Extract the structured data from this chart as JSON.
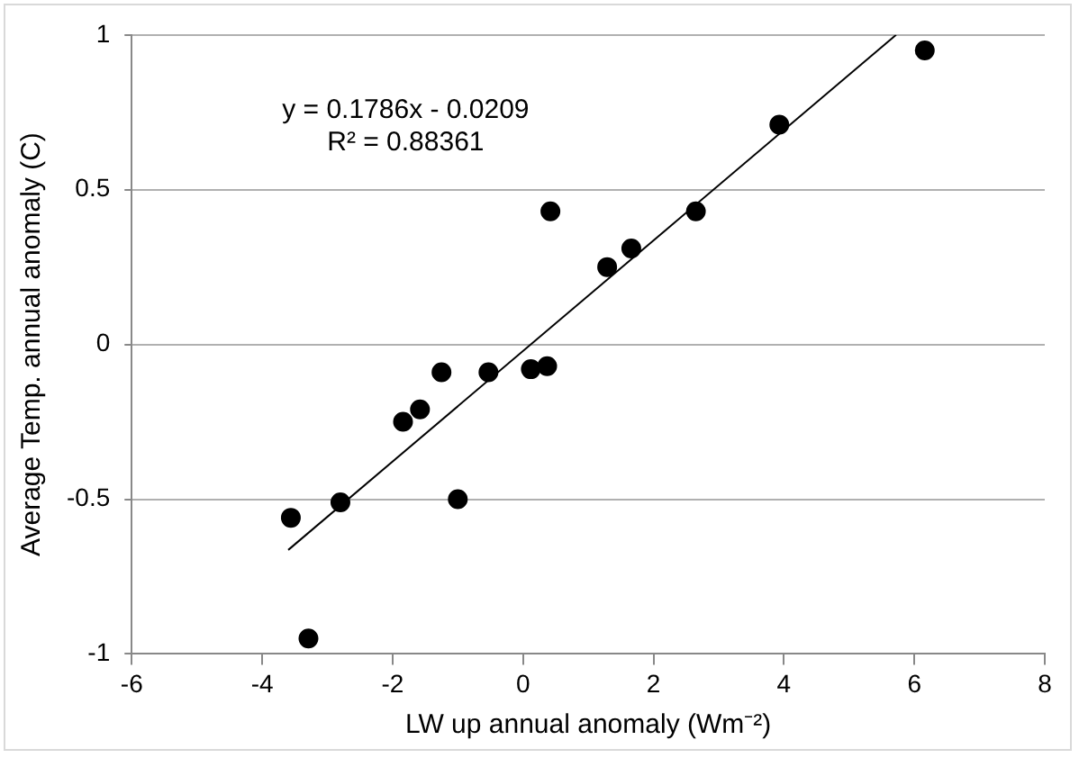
{
  "chart_data": {
    "type": "scatter",
    "xlabel": "LW up annual anomaly (Wm⁻²)",
    "ylabel": "Average Temp. annual anomaly (C)",
    "annotations": [
      "y = 0.1786x - 0.0209",
      "R² = 0.88361"
    ],
    "xlim": [
      -6,
      8
    ],
    "xticks": [
      -6,
      -4,
      -2,
      0,
      2,
      4,
      6,
      8
    ],
    "ylim": [
      -1,
      1
    ],
    "yticks": [
      -1,
      -0.5,
      0,
      0.5,
      1
    ],
    "grid": "y",
    "legend": false,
    "marker": "circle",
    "series": [
      {
        "color": "#000000",
        "x": [
          6.16,
          3.93,
          2.65,
          1.66,
          1.29,
          0.42,
          0.12,
          0.37,
          -1.25,
          -0.53,
          -1.84,
          -1.58,
          -1.0,
          -2.8,
          -3.56,
          -3.29
        ],
        "values": [
          0.95,
          0.71,
          0.43,
          0.31,
          0.25,
          0.43,
          -0.08,
          -0.07,
          -0.09,
          -0.09,
          -0.25,
          -0.21,
          -0.5,
          -0.51,
          -0.56,
          -0.95
        ]
      },
      {
        "type": "line",
        "color": "#000000",
        "marker": "none",
        "x": [
          -3.6,
          5.72
        ],
        "values": [
          -0.664,
          1.0
        ]
      }
    ]
  }
}
